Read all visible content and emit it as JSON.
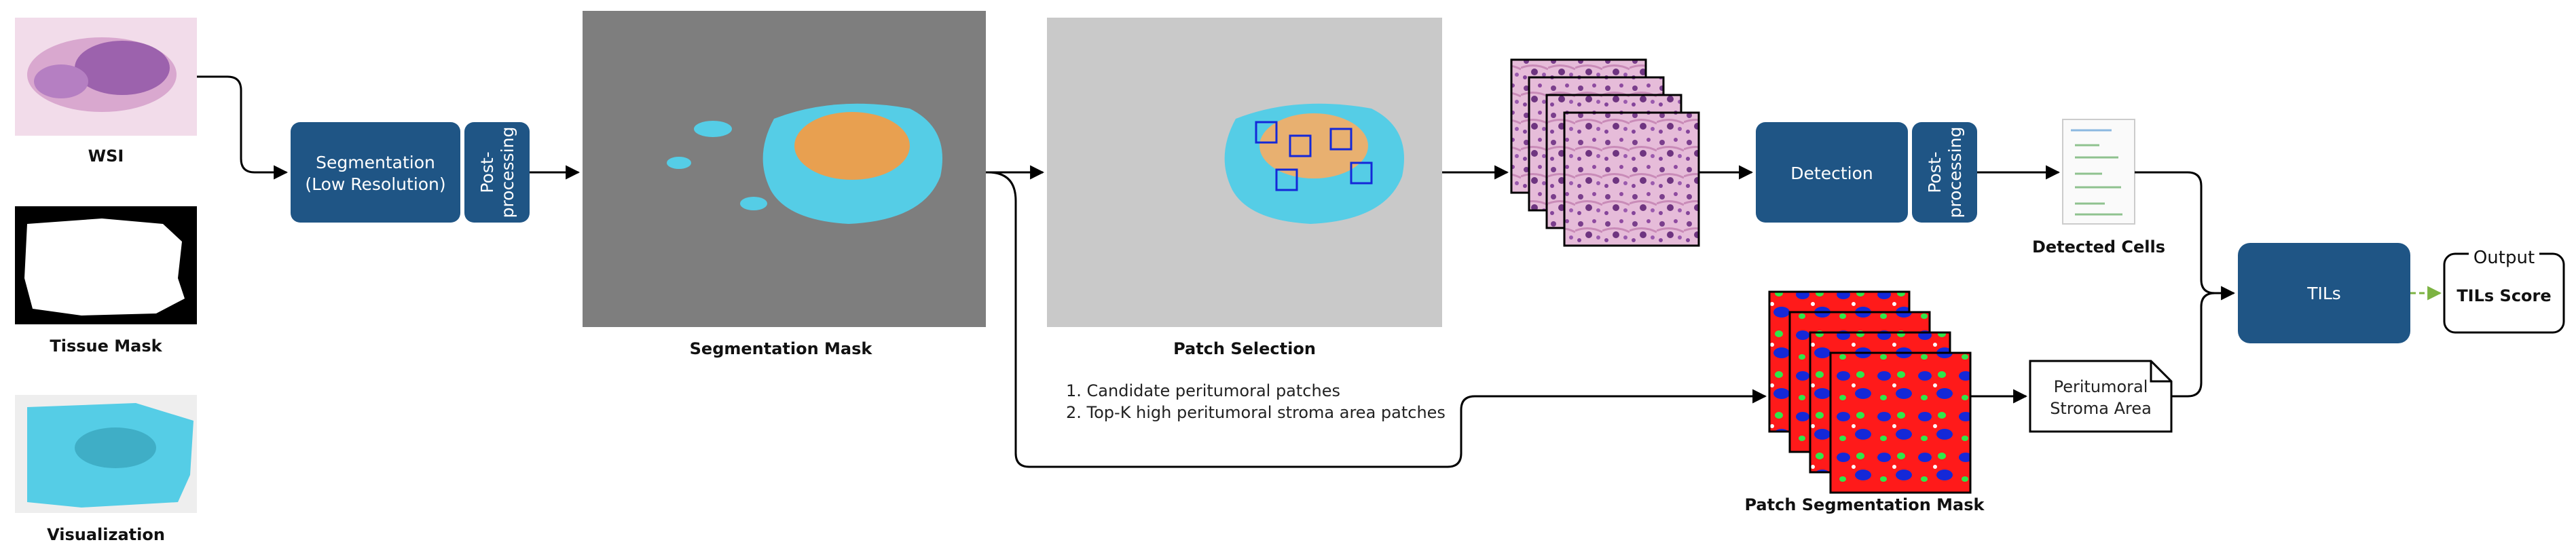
{
  "labels": {
    "wsi": "WSI",
    "tissue_mask": "Tissue Mask",
    "visualization": "Visualization",
    "segmentation_mask": "Segmentation Mask",
    "patch_selection": "Patch Selection",
    "patch_segmentation_mask": "Patch Segmentation Mask",
    "detected_cells": "Detected Cells"
  },
  "boxes": {
    "segmentation_line1": "Segmentation",
    "segmentation_line2": "(Low Resolution)",
    "postproc1_line1": "Post-",
    "postproc1_line2": "processing",
    "detection": "Detection",
    "postproc2_line1": "Post-",
    "postproc2_line2": "processing",
    "tils": "TILs",
    "peritumoral_line1": "Peritumoral",
    "peritumoral_line2": "Stroma Area",
    "output_title": "Output",
    "output_value": "TILs Score"
  },
  "patch_selection_notes": [
    "1. Candidate peritumoral  patches",
    "2. Top-K high peritumoral stroma area patches"
  ],
  "colors": {
    "box_blue": "#1f5585",
    "edge": "#000000",
    "output_arrow": "#7cb342",
    "seg_cyan": "#55cde6",
    "seg_orange": "#e8a050",
    "patch_red": "#ff1a1a",
    "patch_blue": "#1428d8",
    "patch_green": "#2ee84a",
    "he_pink": "#d8a0c8"
  }
}
